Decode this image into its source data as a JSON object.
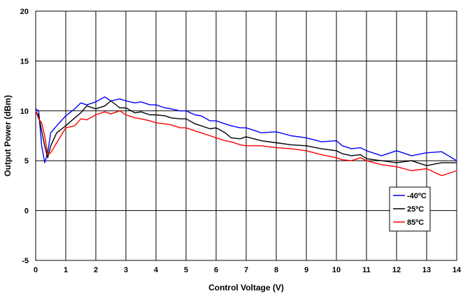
{
  "chart_data": {
    "type": "line",
    "title": "",
    "xlabel": "Control Voltage (V)",
    "ylabel": "Output Power (dBm)",
    "xlim": [
      0,
      14
    ],
    "ylim": [
      -5,
      20
    ],
    "xticks": [
      0,
      1,
      2,
      3,
      4,
      5,
      6,
      7,
      8,
      9,
      10,
      11,
      12,
      13,
      14
    ],
    "yticks": [
      -5,
      0,
      5,
      10,
      15,
      20
    ],
    "grid": true,
    "legend_position": "right",
    "series": [
      {
        "name": "-40ºC",
        "color": "#0000ff",
        "x": [
          0,
          0.1,
          0.2,
          0.3,
          0.4,
          0.5,
          0.7,
          1.0,
          1.3,
          1.5,
          1.7,
          2.0,
          2.3,
          2.5,
          2.8,
          3.0,
          3.3,
          3.5,
          3.8,
          4.0,
          4.3,
          4.5,
          4.8,
          5.0,
          5.3,
          5.5,
          5.8,
          6.0,
          6.3,
          6.5,
          6.8,
          7.0,
          7.5,
          8.0,
          8.5,
          9.0,
          9.5,
          10.0,
          10.2,
          10.5,
          10.8,
          11.0,
          11.5,
          12.0,
          12.5,
          13.0,
          13.5,
          14.0
        ],
        "values": [
          10.2,
          10.0,
          6.5,
          4.8,
          5.8,
          7.8,
          8.5,
          9.5,
          10.2,
          10.8,
          10.6,
          10.9,
          11.4,
          11.0,
          11.2,
          11.0,
          10.8,
          10.9,
          10.6,
          10.6,
          10.3,
          10.2,
          10.0,
          10.0,
          9.6,
          9.5,
          9.0,
          9.0,
          8.7,
          8.5,
          8.3,
          8.3,
          7.8,
          7.9,
          7.5,
          7.3,
          6.9,
          7.0,
          6.5,
          6.2,
          6.3,
          6.0,
          5.5,
          6.0,
          5.5,
          5.8,
          5.9,
          5.0
        ]
      },
      {
        "name": "25ºC",
        "color": "#000000",
        "x": [
          0,
          0.1,
          0.2,
          0.3,
          0.4,
          0.5,
          0.7,
          1.0,
          1.3,
          1.5,
          1.7,
          2.0,
          2.3,
          2.5,
          2.8,
          3.0,
          3.3,
          3.5,
          3.8,
          4.0,
          4.3,
          4.5,
          4.8,
          5.0,
          5.3,
          5.5,
          5.8,
          6.0,
          6.3,
          6.5,
          6.8,
          7.0,
          7.5,
          8.0,
          8.5,
          9.0,
          9.5,
          10.0,
          10.2,
          10.5,
          10.8,
          11.0,
          11.5,
          12.0,
          12.5,
          13.0,
          13.5,
          14.0
        ],
        "values": [
          10.0,
          9.5,
          8.0,
          6.5,
          5.3,
          6.5,
          7.8,
          8.5,
          9.3,
          9.8,
          10.5,
          10.2,
          10.5,
          11.0,
          10.3,
          10.3,
          9.8,
          9.9,
          9.6,
          9.6,
          9.5,
          9.3,
          9.2,
          9.2,
          8.7,
          8.5,
          8.2,
          8.3,
          7.8,
          7.3,
          7.2,
          7.4,
          7.0,
          6.8,
          6.6,
          6.5,
          6.2,
          6.0,
          5.7,
          5.5,
          5.6,
          5.2,
          5.0,
          4.8,
          5.0,
          4.5,
          4.8,
          4.8
        ]
      },
      {
        "name": "85ºC",
        "color": "#ff0000",
        "x": [
          0,
          0.1,
          0.2,
          0.3,
          0.4,
          0.5,
          0.7,
          1.0,
          1.3,
          1.5,
          1.7,
          2.0,
          2.3,
          2.5,
          2.8,
          3.0,
          3.3,
          3.5,
          3.8,
          4.0,
          4.3,
          4.5,
          4.8,
          5.0,
          5.3,
          5.5,
          5.8,
          6.0,
          6.3,
          6.5,
          6.8,
          7.0,
          7.5,
          8.0,
          8.5,
          9.0,
          9.5,
          10.0,
          10.2,
          10.5,
          10.8,
          11.0,
          11.5,
          12.0,
          12.5,
          13.0,
          13.5,
          14.0
        ],
        "values": [
          10.0,
          9.2,
          8.8,
          7.5,
          5.6,
          5.8,
          6.8,
          8.3,
          8.5,
          9.2,
          9.1,
          9.6,
          9.9,
          9.7,
          10.0,
          9.6,
          9.3,
          9.2,
          9.0,
          8.8,
          8.7,
          8.6,
          8.3,
          8.3,
          8.0,
          7.8,
          7.5,
          7.3,
          7.0,
          6.9,
          6.6,
          6.5,
          6.5,
          6.3,
          6.2,
          6.0,
          5.6,
          5.3,
          5.1,
          5.0,
          5.3,
          5.0,
          4.6,
          4.4,
          4.0,
          4.2,
          3.5,
          4.0
        ]
      }
    ]
  }
}
